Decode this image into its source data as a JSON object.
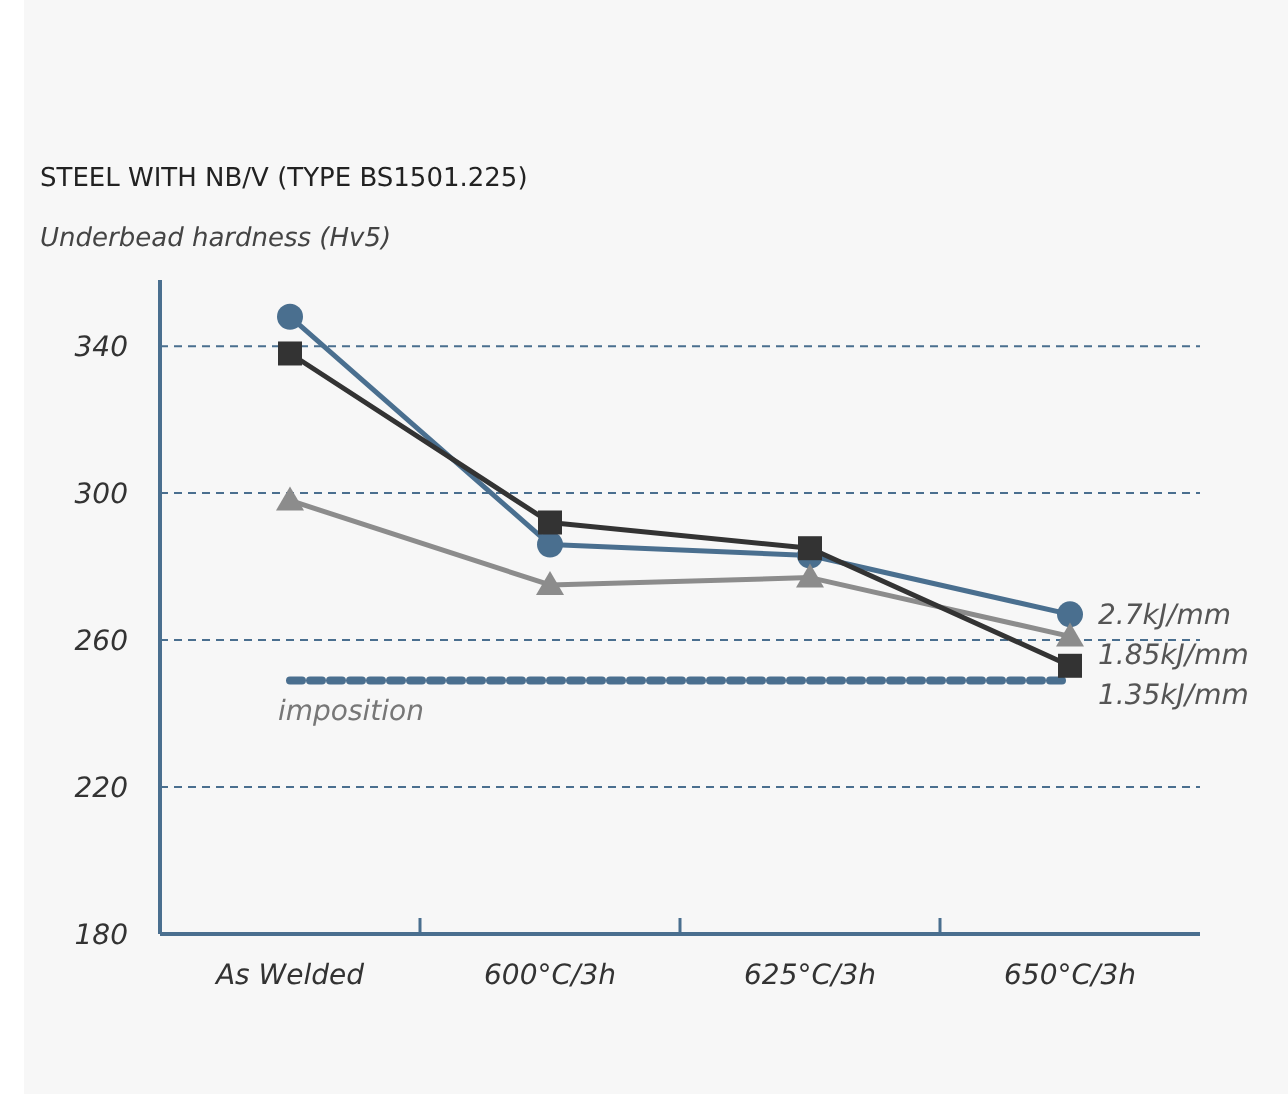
{
  "chart_data": {
    "type": "line",
    "title": "STEEL WITH NB/V (TYPE BS1501.225)",
    "ylabel": "Underbead hardness (Hv5)",
    "categories": [
      "As Welded",
      "600°C/3h",
      "625°C/3h",
      "650°C/3h"
    ],
    "series": [
      {
        "name": "2.7kJ/mm",
        "color": "#4a6f8f",
        "marker": "circle",
        "values": [
          348,
          286,
          283,
          267
        ]
      },
      {
        "name": "1.85kJ/mm",
        "color": "#8c8c8c",
        "marker": "triangle",
        "values": [
          298,
          275,
          277,
          261
        ]
      },
      {
        "name": "1.35kJ/mm",
        "color": "#333333",
        "marker": "square",
        "values": [
          338,
          292,
          285,
          253
        ]
      }
    ],
    "ref_lines": [
      {
        "axis": "y",
        "value": 249,
        "label": "imposition",
        "color": "#4a6f8f",
        "line_style": "dashed"
      }
    ],
    "ylim": [
      180,
      358
    ],
    "yticks": [
      180,
      220,
      260,
      300,
      340
    ],
    "grid": "y",
    "legend": false
  }
}
